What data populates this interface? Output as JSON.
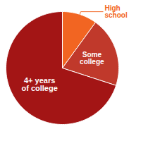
{
  "chart_data": {
    "type": "pie",
    "categories": [
      "High\nschool",
      "Some\ncollege",
      "4+ years\nof college"
    ],
    "values": [
      10,
      20,
      70
    ],
    "colors": [
      "#f26522",
      "#c0392b",
      "#a31515"
    ]
  }
}
